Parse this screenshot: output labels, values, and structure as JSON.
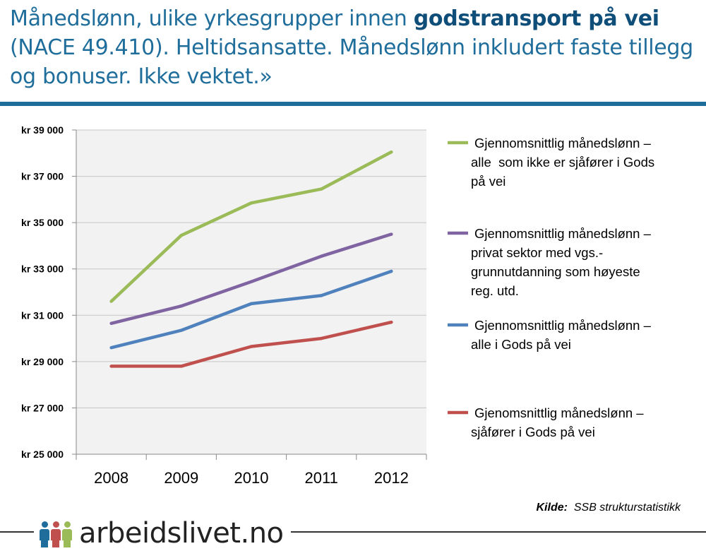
{
  "header": {
    "title_part1": "Månedslønn, ulike yrkesgrupper innen ",
    "title_highlight": "godstransport på vei",
    "title_part2": " (NACE 49.410). Heltidsansatte. Månedslønn inkludert faste tillegg og bonuser. Ikke vektet.»"
  },
  "chart_data": {
    "type": "line",
    "title": "Månedslønn, ulike yrkesgrupper innen godstransport på vei (NACE 49.410). Heltidsansatte. Månedslønn inkludert faste tillegg og bonuser. Ikke vektet.»",
    "xlabel": "",
    "ylabel": "",
    "categories": [
      "2008",
      "2009",
      "2010",
      "2011",
      "2012"
    ],
    "ylim": [
      25000,
      39000
    ],
    "yticks": [
      25000,
      27000,
      29000,
      31000,
      33000,
      35000,
      37000,
      39000
    ],
    "ytick_labels": [
      "kr 25 000",
      "kr 27 000",
      "kr 29 000",
      "kr 31 000",
      "kr 33 000",
      "kr 35 000",
      "kr 37 000",
      "kr 39 000"
    ],
    "grid": true,
    "legend_position": "right",
    "series": [
      {
        "name": "green",
        "label_lines": [
          "Gjennomsnittlig månedslønn –",
          "alle  som ikke er sjåfører i Gods",
          "på vei"
        ],
        "color": "#9bbb59",
        "values": [
          31600,
          34450,
          35850,
          36450,
          38050
        ]
      },
      {
        "name": "purple",
        "label_lines": [
          "Gjennomsnittlig månedslønn –",
          "privat sektor med vgs.-",
          "grunnutdanning som høyeste",
          "reg. utd."
        ],
        "color": "#8064a2",
        "values": [
          30650,
          31400,
          32450,
          33550,
          34500
        ]
      },
      {
        "name": "blue",
        "label_lines": [
          "Gjennomsnittlig månedslønn –",
          "alle i Gods på vei"
        ],
        "color": "#4f81bd",
        "values": [
          29600,
          30350,
          31500,
          31850,
          32900
        ]
      },
      {
        "name": "red",
        "label_lines": [
          "Gjenomsnittlig månedslønn –",
          "sjåfører i Gods på vei"
        ],
        "color": "#c0504d",
        "values": [
          28800,
          28800,
          29650,
          30000,
          30700
        ]
      }
    ]
  },
  "source": {
    "label": "Kilde:",
    "text": "SSB strukturstatistikk"
  },
  "footer": {
    "logo_text": "arbeidslivet.no",
    "logo_colors": [
      "#1f6d9b",
      "#c0504d",
      "#9bbb59"
    ]
  }
}
